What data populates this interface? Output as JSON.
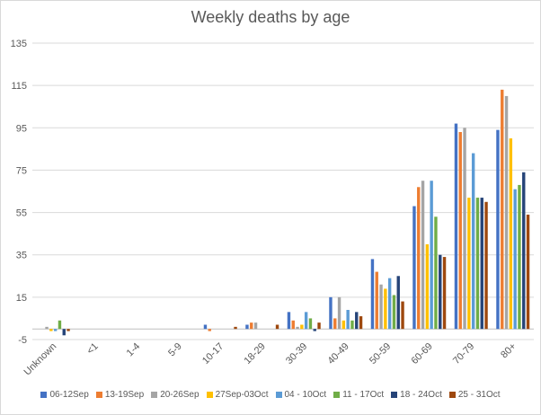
{
  "chart_data": {
    "type": "bar",
    "title": "Weekly deaths by age",
    "xlabel": "",
    "ylabel": "",
    "ylim": [
      -5,
      135
    ],
    "yticks": [
      -5,
      15,
      35,
      55,
      75,
      95,
      115,
      135
    ],
    "grid": true,
    "legend_position": "bottom",
    "categories": [
      "Unknown",
      "<1",
      "1-4",
      "5-9",
      "10-17",
      "18-29",
      "30-39",
      "40-49",
      "50-59",
      "60-69",
      "70-79",
      "80+"
    ],
    "series": [
      {
        "name": "06-12Sep",
        "color": "#4472C4",
        "values": [
          0,
          0,
          0,
          0,
          2,
          2,
          8,
          15,
          33,
          58,
          97,
          94
        ]
      },
      {
        "name": "13-19Sep",
        "color": "#ED7D31",
        "values": [
          0,
          0,
          0,
          0,
          -1,
          3,
          4,
          5,
          27,
          67,
          93,
          113
        ]
      },
      {
        "name": "20-26Sep",
        "color": "#A5A5A5",
        "values": [
          1,
          0,
          0,
          0,
          0,
          3,
          1,
          15,
          21,
          70,
          95,
          110
        ]
      },
      {
        "name": "27Sep-03Oct",
        "color": "#FFC000",
        "values": [
          -1,
          0,
          0,
          0,
          0,
          0,
          2,
          4,
          19,
          40,
          62,
          90
        ]
      },
      {
        "name": "04 - 10Oct",
        "color": "#5B9BD5",
        "values": [
          -1,
          0,
          0,
          0,
          0,
          0,
          8,
          9,
          24,
          70,
          83,
          66
        ]
      },
      {
        "name": "11 - 17Oct",
        "color": "#70AD47",
        "values": [
          4,
          0,
          0,
          0,
          0,
          0,
          5,
          4,
          16,
          53,
          62,
          68
        ]
      },
      {
        "name": "18 - 24Oct",
        "color": "#264478",
        "values": [
          -3,
          0,
          0,
          0,
          0,
          0,
          -1,
          8,
          25,
          35,
          62,
          74
        ]
      },
      {
        "name": "25 - 31Oct",
        "color": "#9E480E",
        "values": [
          -1,
          0,
          0,
          0,
          1,
          2,
          3,
          6,
          13,
          34,
          60,
          54
        ]
      }
    ]
  }
}
